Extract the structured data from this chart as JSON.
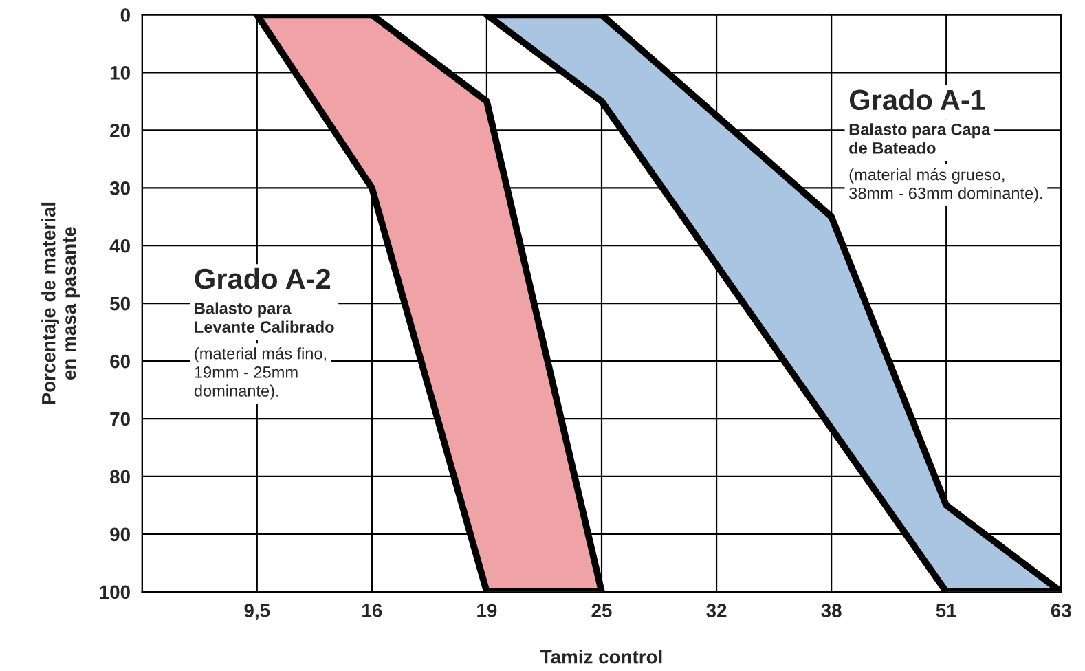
{
  "chart_data": {
    "type": "area",
    "xlabel": "Tamiz control",
    "ylabel": "Porcentaje de material\nen masa pasante",
    "categories": [
      null,
      "9,5",
      "16",
      "19",
      "25",
      "32",
      "38",
      "51",
      "63"
    ],
    "ylim": [
      100,
      0
    ],
    "yticks": [
      0,
      10,
      20,
      30,
      40,
      50,
      60,
      70,
      80,
      90,
      100
    ],
    "grid": true,
    "series": [
      {
        "color": "#f0a3a6",
        "x": [
          "9,5",
          "16",
          "19",
          "25",
          "19",
          "16"
        ],
        "values": [
          0,
          0,
          15,
          100,
          100,
          30
        ]
      },
      {
        "color": "#a9c5e1",
        "x": [
          "19",
          "25",
          "38",
          "51",
          "63",
          "51",
          "25"
        ],
        "values": [
          0,
          0,
          35,
          85,
          100,
          100,
          15
        ]
      }
    ],
    "annotations": [
      "Grado A-2",
      "Balasto para\nLevante Calibrado",
      "(material más fino,\n19mm - 25mm\ndominante).",
      "Grado A-1",
      "Balasto para Capa\nde Bateado",
      "(material más grueso,\n38mm - 63mm dominante)."
    ]
  }
}
